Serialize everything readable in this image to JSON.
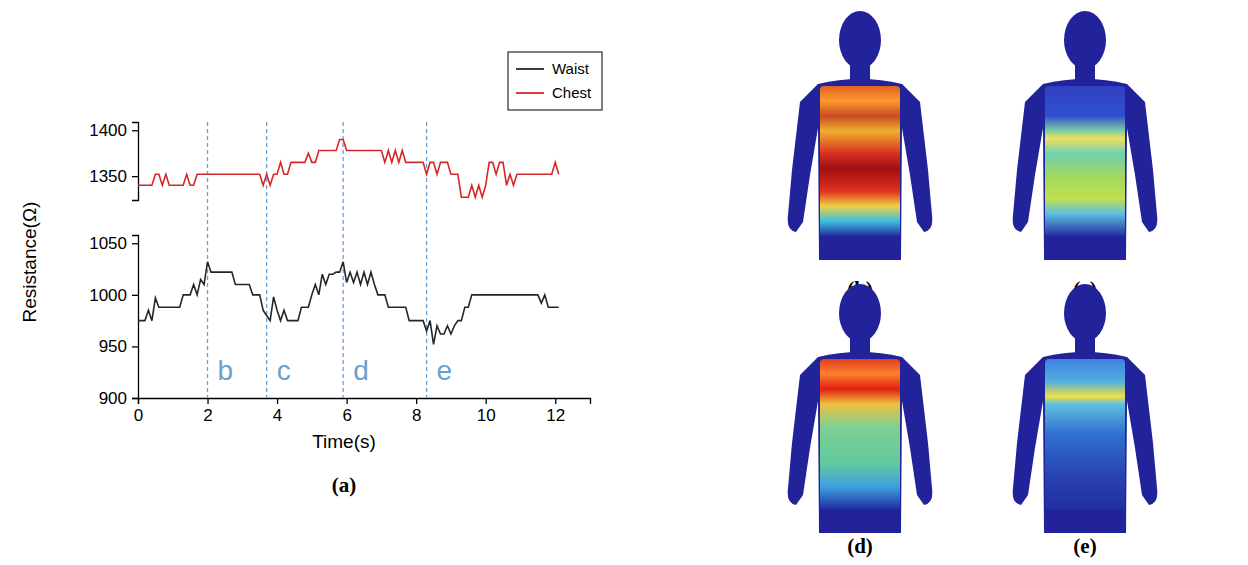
{
  "chart_data": {
    "type": "line",
    "caption": "(a)",
    "x_label": "Time(s)",
    "y_label": "Resistance(Ω)",
    "xlim": [
      0,
      13
    ],
    "xticks": [
      0,
      2,
      4,
      6,
      8,
      10,
      12
    ],
    "ylim": [
      900,
      1058
    ],
    "yticks": [
      900,
      950,
      1000,
      1050
    ],
    "y2lim": [
      1324,
      1409
    ],
    "y2ticks": [
      1350,
      1400
    ],
    "grid": false,
    "legend": "top-right",
    "x": [
      0,
      0.1,
      0.2,
      0.3,
      0.4,
      0.5,
      0.6,
      0.7,
      0.8,
      0.9,
      1,
      1.1,
      1.2,
      1.3,
      1.4,
      1.5,
      1.6,
      1.7,
      1.8,
      1.9,
      2,
      2.1,
      2.2,
      2.3,
      2.4,
      2.5,
      2.6,
      2.7,
      2.8,
      2.9,
      3,
      3.1,
      3.2,
      3.3,
      3.4,
      3.5,
      3.6,
      3.7,
      3.8,
      3.9,
      4,
      4.1,
      4.2,
      4.3,
      4.4,
      4.5,
      4.6,
      4.7,
      4.8,
      4.9,
      5,
      5.1,
      5.2,
      5.3,
      5.4,
      5.5,
      5.6,
      5.7,
      5.8,
      5.9,
      6,
      6.1,
      6.2,
      6.3,
      6.4,
      6.5,
      6.6,
      6.7,
      6.8,
      6.9,
      7,
      7.1,
      7.2,
      7.3,
      7.4,
      7.5,
      7.6,
      7.7,
      7.8,
      7.9,
      8,
      8.1,
      8.2,
      8.3,
      8.4,
      8.5,
      8.6,
      8.7,
      8.8,
      8.9,
      9,
      9.1,
      9.2,
      9.3,
      9.4,
      9.5,
      9.6,
      9.7,
      9.8,
      9.9,
      10,
      10.1,
      10.2,
      10.3,
      10.4,
      10.5,
      10.6,
      10.7,
      10.8,
      10.9,
      11,
      11.1,
      11.2,
      11.3,
      11.4,
      11.5,
      11.6,
      11.7,
      11.8,
      11.9,
      12,
      12.1
    ],
    "series": [
      {
        "name": "Waist",
        "color": "#262626",
        "values": [
          975,
          975,
          975,
          985,
          975,
          997,
          988,
          988,
          988,
          988,
          988,
          988,
          988,
          1000,
          1000,
          1000,
          1010,
          1000,
          1015,
          1010,
          1032,
          1022,
          1022,
          1022,
          1022,
          1022,
          1022,
          1022,
          1010,
          1010,
          1010,
          1010,
          1010,
          1000,
          1000,
          1000,
          985,
          980,
          975,
          998,
          985,
          975,
          985,
          975,
          975,
          975,
          975,
          988,
          988,
          988,
          1000,
          1010,
          1000,
          1020,
          1010,
          1020,
          1020,
          1022,
          1022,
          1032,
          1012,
          1022,
          1012,
          1022,
          1010,
          1022,
          1010,
          1022,
          1010,
          1000,
          1000,
          1000,
          988,
          988,
          988,
          988,
          988,
          988,
          975,
          975,
          975,
          975,
          975,
          965,
          975,
          952,
          970,
          962,
          962,
          970,
          962,
          970,
          975,
          975,
          988,
          988,
          1000,
          1000,
          1000,
          1000,
          1000,
          1000,
          1000,
          1000,
          1000,
          1000,
          1000,
          1000,
          1000,
          1000,
          1000,
          1000,
          1000,
          1000,
          1000,
          1000,
          992,
          1000,
          988,
          988,
          988,
          988
        ]
      },
      {
        "name": "Chest",
        "color": "#d62728",
        "axis": "y2",
        "values": [
          1340,
          1340,
          1340,
          1340,
          1340,
          1352,
          1352,
          1340,
          1352,
          1340,
          1340,
          1340,
          1340,
          1340,
          1352,
          1340,
          1340,
          1352,
          1352,
          1352,
          1352,
          1352,
          1352,
          1352,
          1352,
          1352,
          1352,
          1352,
          1352,
          1352,
          1352,
          1352,
          1352,
          1352,
          1352,
          1352,
          1340,
          1352,
          1340,
          1352,
          1352,
          1365,
          1352,
          1352,
          1365,
          1365,
          1365,
          1365,
          1365,
          1375,
          1365,
          1365,
          1378,
          1378,
          1378,
          1378,
          1378,
          1378,
          1390,
          1390,
          1378,
          1378,
          1378,
          1378,
          1378,
          1378,
          1378,
          1378,
          1378,
          1378,
          1378,
          1365,
          1378,
          1365,
          1378,
          1365,
          1378,
          1365,
          1365,
          1365,
          1365,
          1365,
          1365,
          1352,
          1365,
          1365,
          1352,
          1365,
          1365,
          1365,
          1352,
          1352,
          1352,
          1327,
          1327,
          1327,
          1340,
          1327,
          1340,
          1327,
          1340,
          1365,
          1365,
          1352,
          1365,
          1365,
          1340,
          1352,
          1340,
          1352,
          1352,
          1352,
          1352,
          1352,
          1352,
          1352,
          1352,
          1352,
          1352,
          1352,
          1365,
          1352
        ]
      }
    ],
    "annotations": [
      {
        "x": 2.0,
        "label": "b"
      },
      {
        "x": 3.7,
        "label": "c"
      },
      {
        "x": 5.9,
        "label": "d"
      },
      {
        "x": 8.3,
        "label": "e"
      }
    ]
  },
  "images": [
    {
      "label": "(b)"
    },
    {
      "label": "(c)"
    },
    {
      "label": "(d)"
    },
    {
      "label": "(e)"
    }
  ]
}
